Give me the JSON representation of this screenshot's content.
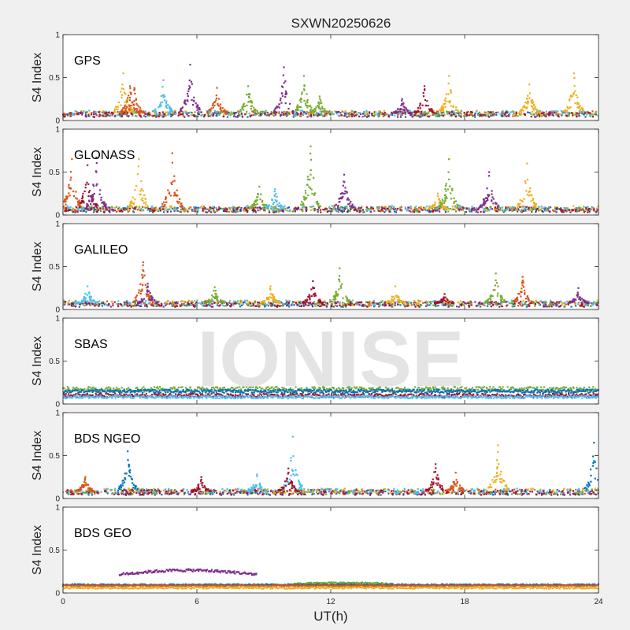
{
  "figure": {
    "title": "SXWN20250626",
    "watermark": "IONISE",
    "background": "#f0f0f0",
    "axes_background": "#ffffff",
    "axis_color": "#262626",
    "watermark_color": "#e2e2e2"
  },
  "chart_data": {
    "type": "scatter",
    "title": "SXWN20250626",
    "xlabel": "UT(h)",
    "xlim": [
      0,
      24
    ],
    "xticks": [
      0,
      6,
      12,
      18,
      24
    ],
    "xtick_labels": [
      "0",
      "6",
      "12",
      "18",
      "24"
    ],
    "ylabel": "S4 Index",
    "ylim": [
      0,
      1
    ],
    "yticks": [
      0,
      0.5,
      1
    ],
    "ytick_labels": [
      "0",
      "0.5",
      "1"
    ],
    "series_colors": [
      "#0072bd",
      "#d95319",
      "#edb120",
      "#7e2f8e",
      "#77ac30",
      "#4dbeee",
      "#a2142f"
    ],
    "panels": [
      {
        "name": "GPS",
        "base": 0.07,
        "spikes": [
          {
            "t": 2.7,
            "peak": 0.55,
            "color": 2
          },
          {
            "t": 3.0,
            "peak": 0.4,
            "color": 1
          },
          {
            "t": 3.2,
            "peak": 0.38,
            "color": 1
          },
          {
            "t": 4.5,
            "peak": 0.47,
            "color": 5
          },
          {
            "t": 5.7,
            "peak": 0.65,
            "color": 3
          },
          {
            "t": 6.9,
            "peak": 0.38,
            "color": 1
          },
          {
            "t": 8.3,
            "peak": 0.4,
            "color": 4
          },
          {
            "t": 9.9,
            "peak": 0.62,
            "color": 3
          },
          {
            "t": 10.8,
            "peak": 0.52,
            "color": 4
          },
          {
            "t": 11.5,
            "peak": 0.28,
            "color": 4
          },
          {
            "t": 16.2,
            "peak": 0.4,
            "color": 6
          },
          {
            "t": 17.3,
            "peak": 0.52,
            "color": 2
          },
          {
            "t": 20.9,
            "peak": 0.42,
            "color": 2
          },
          {
            "t": 22.9,
            "peak": 0.55,
            "color": 2
          },
          {
            "t": 15.2,
            "peak": 0.25,
            "color": 3
          }
        ],
        "bands": []
      },
      {
        "name": "GLONASS",
        "base": 0.06,
        "spikes": [
          {
            "t": 0.4,
            "peak": 0.65,
            "color": 1
          },
          {
            "t": 1.1,
            "peak": 0.58,
            "color": 6
          },
          {
            "t": 1.5,
            "peak": 0.67,
            "color": 3
          },
          {
            "t": 3.4,
            "peak": 0.65,
            "color": 2
          },
          {
            "t": 4.9,
            "peak": 0.72,
            "color": 1
          },
          {
            "t": 8.8,
            "peak": 0.33,
            "color": 4
          },
          {
            "t": 9.5,
            "peak": 0.3,
            "color": 5
          },
          {
            "t": 11.1,
            "peak": 0.8,
            "color": 4
          },
          {
            "t": 12.6,
            "peak": 0.47,
            "color": 3
          },
          {
            "t": 16.8,
            "peak": 0.25,
            "color": 2
          },
          {
            "t": 17.3,
            "peak": 0.65,
            "color": 4
          },
          {
            "t": 19.1,
            "peak": 0.5,
            "color": 3
          },
          {
            "t": 20.8,
            "peak": 0.6,
            "color": 2
          }
        ],
        "bands": []
      },
      {
        "name": "GALILEO",
        "base": 0.06,
        "spikes": [
          {
            "t": 1.1,
            "peak": 0.27,
            "color": 5
          },
          {
            "t": 3.6,
            "peak": 0.55,
            "color": 1
          },
          {
            "t": 3.8,
            "peak": 0.3,
            "color": 3
          },
          {
            "t": 6.8,
            "peak": 0.26,
            "color": 4
          },
          {
            "t": 9.3,
            "peak": 0.27,
            "color": 2
          },
          {
            "t": 11.2,
            "peak": 0.33,
            "color": 6
          },
          {
            "t": 12.4,
            "peak": 0.48,
            "color": 4
          },
          {
            "t": 14.9,
            "peak": 0.27,
            "color": 2
          },
          {
            "t": 19.4,
            "peak": 0.42,
            "color": 4
          },
          {
            "t": 20.6,
            "peak": 0.38,
            "color": 1
          },
          {
            "t": 23.1,
            "peak": 0.25,
            "color": 3
          },
          {
            "t": 17.1,
            "peak": 0.18,
            "color": 6
          }
        ],
        "bands": []
      },
      {
        "name": "SBAS",
        "base": 0.12,
        "spikes": [],
        "bands": [
          {
            "t0": 0,
            "t1": 24,
            "y": 0.17,
            "spread": 0.03,
            "color": 4
          },
          {
            "t0": 0,
            "t1": 24,
            "y": 0.15,
            "spread": 0.02,
            "color": 0
          },
          {
            "t0": 0,
            "t1": 24,
            "y": 0.1,
            "spread": 0.02,
            "color": 6
          },
          {
            "t0": 0,
            "t1": 24,
            "y": 0.08,
            "spread": 0.015,
            "color": 5
          }
        ]
      },
      {
        "name": "BDS NGEO",
        "base": 0.07,
        "spikes": [
          {
            "t": 1.0,
            "peak": 0.25,
            "color": 1
          },
          {
            "t": 2.9,
            "peak": 0.55,
            "color": 0
          },
          {
            "t": 6.2,
            "peak": 0.25,
            "color": 6
          },
          {
            "t": 8.7,
            "peak": 0.28,
            "color": 5
          },
          {
            "t": 10.3,
            "peak": 0.72,
            "color": 5
          },
          {
            "t": 10.1,
            "peak": 0.35,
            "color": 6
          },
          {
            "t": 16.7,
            "peak": 0.4,
            "color": 6
          },
          {
            "t": 17.6,
            "peak": 0.3,
            "color": 1
          },
          {
            "t": 19.5,
            "peak": 0.62,
            "color": 2
          },
          {
            "t": 23.8,
            "peak": 0.65,
            "color": 0
          }
        ],
        "bands": []
      },
      {
        "name": "BDS GEO",
        "base": 0.08,
        "spikes": [],
        "bands": [
          {
            "t0": 2.5,
            "t1": 8.7,
            "y": 0.24,
            "spread": 0.015,
            "arc": 0.05,
            "color": 3
          },
          {
            "t0": 10.2,
            "t1": 14.8,
            "y": 0.11,
            "spread": 0.01,
            "arc": 0.015,
            "color": 4
          },
          {
            "t0": 0,
            "t1": 24,
            "y": 0.095,
            "spread": 0.008,
            "color": 0
          },
          {
            "t0": 0,
            "t1": 24,
            "y": 0.085,
            "spread": 0.008,
            "color": 1
          },
          {
            "t0": 0,
            "t1": 24,
            "y": 0.06,
            "spread": 0.01,
            "color": 2
          }
        ]
      }
    ]
  }
}
